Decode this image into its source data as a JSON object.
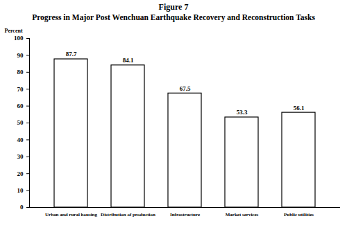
{
  "chart_data": {
    "type": "bar",
    "title": "Figure 7",
    "subtitle": "Progress in Major Post Wenchuan Earthquake Recovery and Reconstruction Tasks",
    "y_label": "Percent",
    "categories": [
      "Urban and rural housing",
      "Distribution of production",
      "Infrastructure",
      "Market services",
      "Public utilities"
    ],
    "values": [
      87.7,
      84.1,
      67.5,
      53.3,
      56.1
    ],
    "color": "#ffffff",
    "ylim": [
      0,
      100
    ],
    "yticks": [
      0,
      10,
      20,
      30,
      40,
      50,
      60,
      70,
      80,
      90,
      100
    ],
    "grid": false,
    "data_labels": true
  }
}
